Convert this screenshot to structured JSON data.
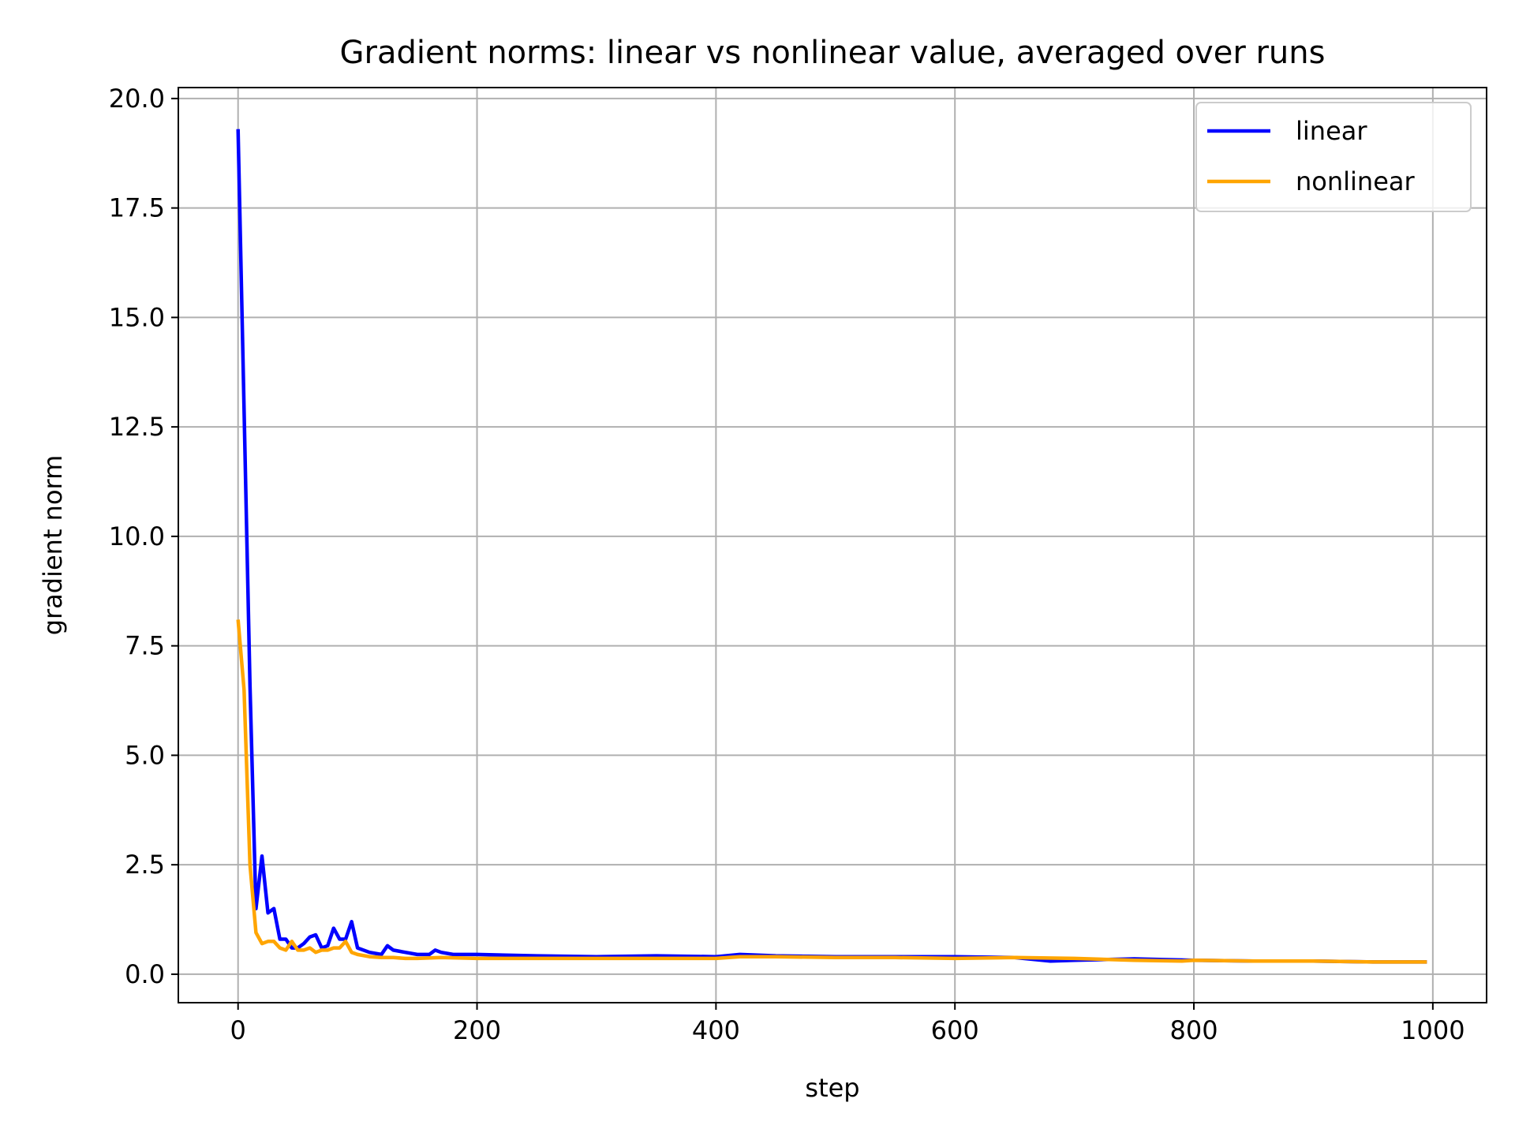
{
  "chart_data": {
    "type": "line",
    "title": "Gradient norms: linear vs nonlinear value, averaged over runs",
    "xlabel": "step",
    "ylabel": "gradient norm",
    "xlim": [
      -50,
      1045
    ],
    "ylim": [
      -0.65,
      20.25
    ],
    "xticks": [
      0,
      200,
      400,
      600,
      800,
      1000
    ],
    "xtick_labels": [
      "0",
      "200",
      "400",
      "600",
      "800",
      "1000"
    ],
    "yticks": [
      0,
      2.5,
      5,
      7.5,
      10,
      12.5,
      15,
      17.5,
      20
    ],
    "ytick_labels": [
      "0.0",
      "2.5",
      "5.0",
      "7.5",
      "10.0",
      "12.5",
      "15.0",
      "17.5",
      "20.0"
    ],
    "grid": true,
    "legend_position": "top-right",
    "series": [
      {
        "name": "linear",
        "color": "#0000ff",
        "x": [
          0,
          10,
          15,
          20,
          25,
          30,
          35,
          40,
          45,
          50,
          55,
          60,
          65,
          70,
          75,
          80,
          85,
          90,
          95,
          100,
          110,
          120,
          125,
          130,
          140,
          150,
          160,
          165,
          170,
          180,
          190,
          200,
          250,
          300,
          350,
          400,
          420,
          450,
          500,
          550,
          600,
          650,
          680,
          700,
          750,
          800,
          850,
          900,
          950,
          995
        ],
        "y": [
          19.3,
          6.6,
          1.5,
          2.7,
          1.4,
          1.5,
          0.8,
          0.8,
          0.6,
          0.6,
          0.7,
          0.85,
          0.9,
          0.6,
          0.65,
          1.05,
          0.8,
          0.8,
          1.2,
          0.6,
          0.5,
          0.45,
          0.65,
          0.55,
          0.5,
          0.45,
          0.45,
          0.55,
          0.5,
          0.45,
          0.45,
          0.45,
          0.42,
          0.4,
          0.42,
          0.4,
          0.45,
          0.42,
          0.4,
          0.4,
          0.4,
          0.38,
          0.3,
          0.32,
          0.35,
          0.32,
          0.3,
          0.3,
          0.28,
          0.28
        ]
      },
      {
        "name": "nonlinear",
        "color": "#ffa500",
        "x": [
          0,
          5,
          10,
          15,
          20,
          25,
          30,
          35,
          40,
          45,
          50,
          55,
          60,
          65,
          70,
          75,
          80,
          85,
          90,
          95,
          100,
          110,
          120,
          130,
          140,
          150,
          170,
          200,
          250,
          300,
          350,
          400,
          420,
          450,
          500,
          550,
          600,
          650,
          700,
          750,
          790,
          800,
          850,
          900,
          950,
          995
        ],
        "y": [
          8.1,
          6.5,
          2.5,
          0.95,
          0.7,
          0.75,
          0.75,
          0.6,
          0.55,
          0.75,
          0.55,
          0.55,
          0.6,
          0.5,
          0.55,
          0.55,
          0.6,
          0.6,
          0.75,
          0.5,
          0.45,
          0.4,
          0.38,
          0.38,
          0.36,
          0.36,
          0.38,
          0.36,
          0.36,
          0.36,
          0.36,
          0.36,
          0.4,
          0.4,
          0.38,
          0.38,
          0.36,
          0.38,
          0.36,
          0.32,
          0.3,
          0.32,
          0.3,
          0.3,
          0.28,
          0.28
        ]
      }
    ]
  }
}
